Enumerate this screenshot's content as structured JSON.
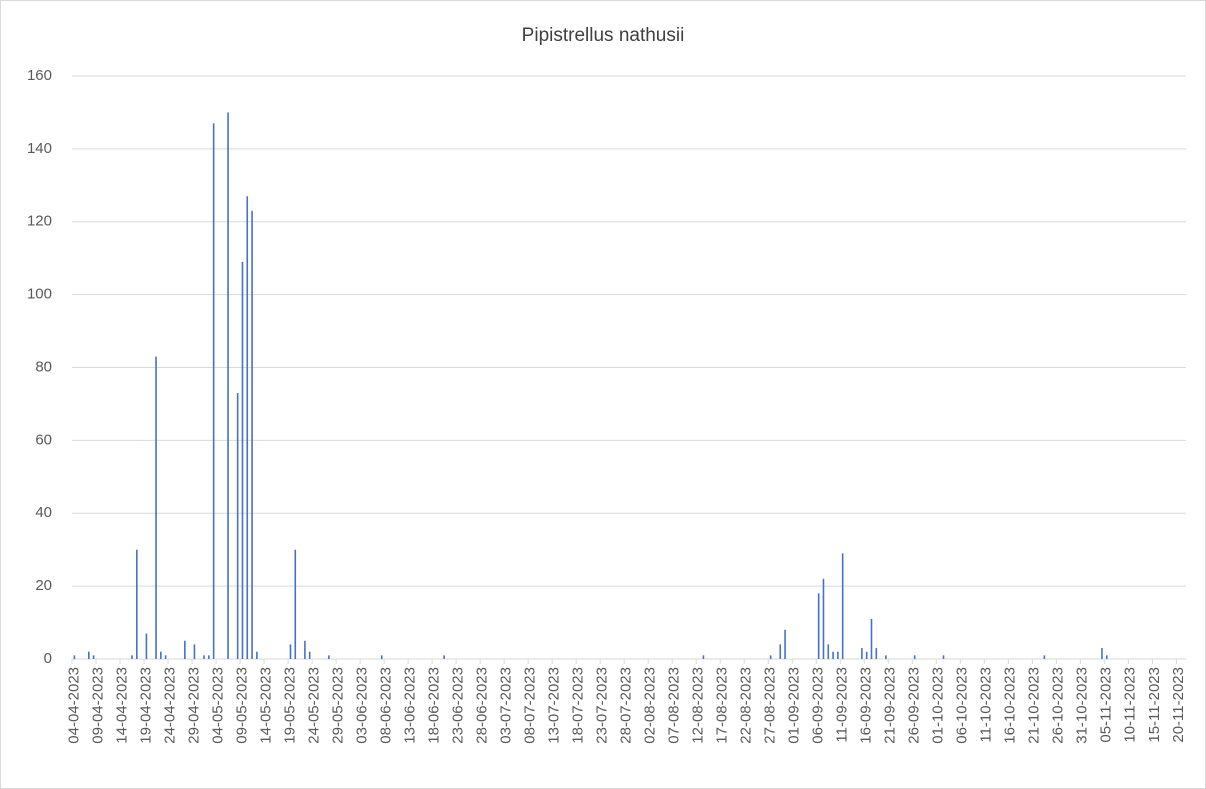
{
  "chart_data": {
    "type": "bar",
    "title": "Pipistrellus nathusii",
    "color": "#4472c4",
    "grid": true,
    "ylim": [
      0,
      160
    ],
    "yticks": [
      0,
      20,
      40,
      60,
      80,
      100,
      120,
      140,
      160
    ],
    "categories": [
      "04-04-2023",
      null,
      null,
      null,
      null,
      "09-04-2023",
      null,
      null,
      null,
      null,
      "14-04-2023",
      null,
      null,
      null,
      null,
      "19-04-2023",
      null,
      null,
      null,
      null,
      "24-04-2023",
      null,
      null,
      null,
      null,
      "29-04-2023",
      null,
      null,
      null,
      null,
      "04-05-2023",
      null,
      null,
      null,
      null,
      "09-05-2023",
      null,
      null,
      null,
      null,
      "14-05-2023",
      null,
      null,
      null,
      null,
      "19-05-2023",
      null,
      null,
      null,
      null,
      "24-05-2023",
      null,
      null,
      null,
      null,
      "29-05-2023",
      null,
      null,
      null,
      null,
      "03-06-2023",
      null,
      null,
      null,
      null,
      "08-06-2023",
      null,
      null,
      null,
      null,
      "13-06-2023",
      null,
      null,
      null,
      null,
      "18-06-2023",
      null,
      null,
      null,
      null,
      "23-06-2023",
      null,
      null,
      null,
      null,
      "28-06-2023",
      null,
      null,
      null,
      null,
      "03-07-2023",
      null,
      null,
      null,
      null,
      "08-07-2023",
      null,
      null,
      null,
      null,
      "13-07-2023",
      null,
      null,
      null,
      null,
      "18-07-2023",
      null,
      null,
      null,
      null,
      "23-07-2023",
      null,
      null,
      null,
      null,
      "28-07-2023",
      null,
      null,
      null,
      null,
      "02-08-2023",
      null,
      null,
      null,
      null,
      "07-08-2023",
      null,
      null,
      null,
      null,
      "12-08-2023",
      null,
      null,
      null,
      null,
      "17-08-2023",
      null,
      null,
      null,
      null,
      "22-08-2023",
      null,
      null,
      null,
      null,
      "27-08-2023",
      null,
      null,
      null,
      null,
      "01-09-2023",
      null,
      null,
      null,
      null,
      "06-09-2023",
      null,
      null,
      null,
      null,
      "11-09-2023",
      null,
      null,
      null,
      null,
      "16-09-2023",
      null,
      null,
      null,
      null,
      "21-09-2023",
      null,
      null,
      null,
      null,
      "26-09-2023",
      null,
      null,
      null,
      null,
      "01-10-2023",
      null,
      null,
      null,
      null,
      "06-10-2023",
      null,
      null,
      null,
      null,
      "11-10-2023",
      null,
      null,
      null,
      null,
      "16-10-2023",
      null,
      null,
      null,
      null,
      "21-10-2023",
      null,
      null,
      null,
      null,
      "26-10-2023",
      null,
      null,
      null,
      null,
      "31-10-2023",
      null,
      null,
      null,
      null,
      "05-11-2023",
      null,
      null,
      null,
      null,
      "10-11-2023",
      null,
      null,
      null,
      null,
      "15-11-2023",
      null,
      null,
      null,
      null,
      "20-11-2023",
      null
    ],
    "values": [
      1,
      0,
      0,
      2,
      1,
      0,
      0,
      0,
      0,
      0,
      0,
      0,
      1,
      30,
      0,
      7,
      0,
      83,
      2,
      1,
      0,
      0,
      0,
      5,
      0,
      4,
      0,
      1,
      1,
      147,
      0,
      0,
      150,
      0,
      73,
      109,
      127,
      123,
      2,
      0,
      0,
      0,
      0,
      0,
      0,
      4,
      30,
      0,
      5,
      2,
      0,
      0,
      0,
      1,
      0,
      0,
      0,
      0,
      0,
      0,
      0,
      0,
      0,
      0,
      1,
      0,
      0,
      0,
      0,
      0,
      0,
      0,
      0,
      0,
      0,
      0,
      0,
      1,
      0,
      0,
      0,
      0,
      0,
      0,
      0,
      0,
      0,
      0,
      0,
      0,
      0,
      0,
      0,
      0,
      0,
      0,
      0,
      0,
      0,
      0,
      0,
      0,
      0,
      0,
      0,
      0,
      0,
      0,
      0,
      0,
      0,
      0,
      0,
      0,
      0,
      0,
      0,
      0,
      0,
      0,
      0,
      0,
      0,
      0,
      0,
      0,
      0,
      0,
      0,
      0,
      0,
      1,
      0,
      0,
      0,
      0,
      0,
      0,
      0,
      0,
      0,
      0,
      0,
      0,
      0,
      1,
      0,
      4,
      8,
      0,
      0,
      0,
      0,
      0,
      0,
      18,
      22,
      4,
      2,
      2,
      29,
      0,
      0,
      0,
      3,
      2,
      11,
      3,
      0,
      1,
      0,
      0,
      0,
      0,
      0,
      1,
      0,
      0,
      0,
      0,
      0,
      1,
      0,
      0,
      0,
      0,
      0,
      0,
      0,
      0,
      0,
      0,
      0,
      0,
      0,
      0,
      0,
      0,
      0,
      0,
      0,
      0,
      1,
      0,
      0,
      0,
      0,
      0,
      0,
      0,
      0,
      0,
      0,
      0,
      3,
      1,
      0,
      0,
      0,
      0,
      0,
      0,
      0,
      0,
      0,
      0,
      0,
      0,
      0,
      0,
      0,
      0
    ]
  }
}
